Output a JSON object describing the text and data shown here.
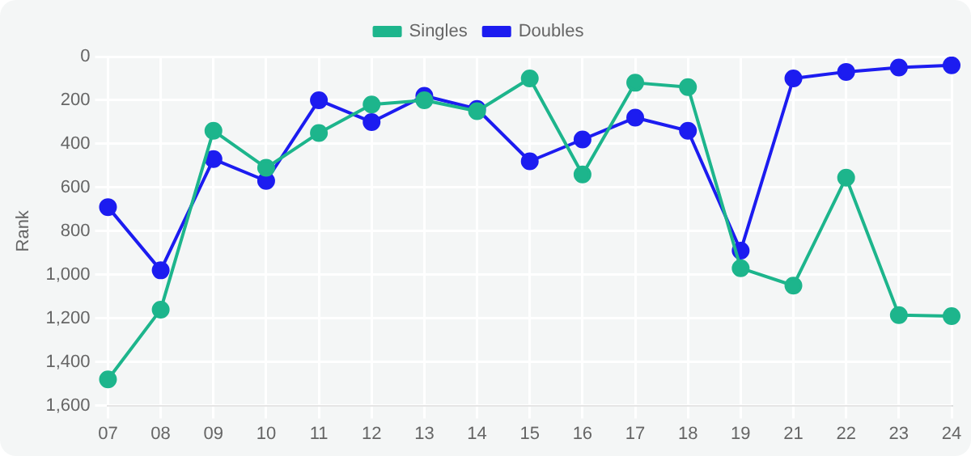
{
  "chart_data": {
    "type": "line",
    "ylabel": "Rank",
    "categories": [
      "07",
      "08",
      "09",
      "10",
      "11",
      "12",
      "13",
      "14",
      "15",
      "16",
      "17",
      "18",
      "19",
      "21",
      "22",
      "23",
      "24"
    ],
    "series": [
      {
        "name": "Singles",
        "color": "#1db58c",
        "values": [
          1480,
          1160,
          340,
          510,
          350,
          220,
          200,
          250,
          100,
          540,
          120,
          140,
          970,
          1050,
          555,
          1185,
          1190
        ]
      },
      {
        "name": "Doubles",
        "color": "#1c1cf0",
        "values": [
          690,
          980,
          470,
          570,
          200,
          300,
          180,
          240,
          480,
          380,
          280,
          340,
          890,
          100,
          70,
          50,
          40
        ]
      }
    ],
    "ylim": [
      1600,
      0
    ],
    "yticks": [
      0,
      200,
      400,
      600,
      800,
      {
        "value": 1000,
        "label": "1,000"
      },
      {
        "value": 1200,
        "label": "1,200"
      },
      {
        "value": 1400,
        "label": "1,400"
      },
      {
        "value": 1600,
        "label": "1,600"
      }
    ],
    "grid": true,
    "legend": "top",
    "marker": "circle",
    "line_style": "solid"
  }
}
